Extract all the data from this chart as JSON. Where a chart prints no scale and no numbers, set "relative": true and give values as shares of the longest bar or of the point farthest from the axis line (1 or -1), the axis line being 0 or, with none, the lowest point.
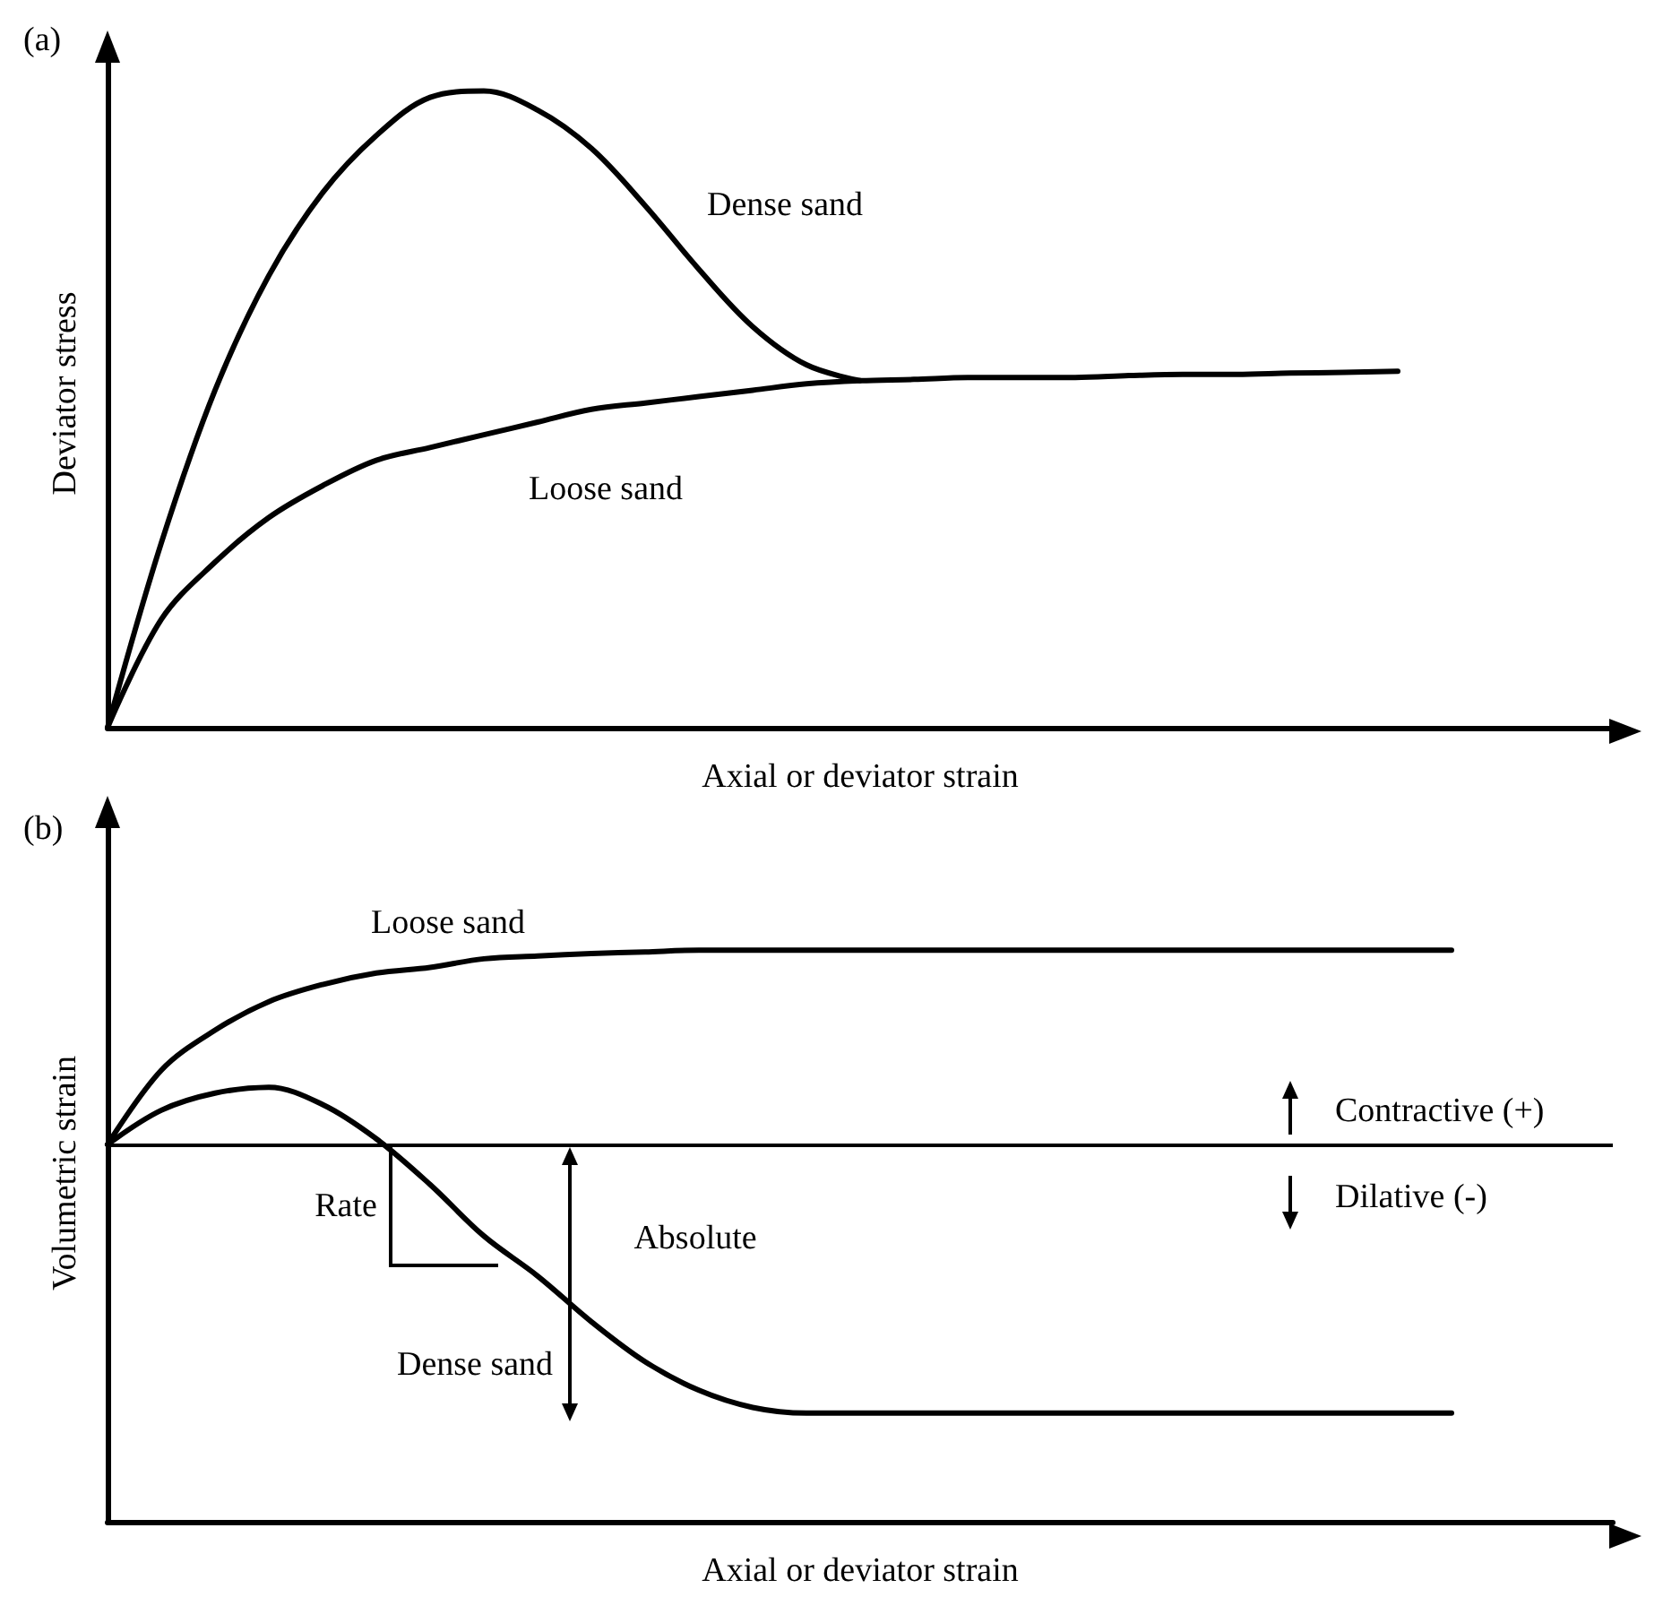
{
  "chart_data": [
    {
      "type": "line",
      "title": "(a)",
      "xlabel": "Axial or deviator strain",
      "ylabel": "Deviator stress",
      "relative": true,
      "grid": false,
      "legend": false,
      "marker": "none",
      "line_style": "solid",
      "categories": [
        null,
        null,
        null,
        null,
        null,
        null,
        null,
        null,
        null,
        null,
        null,
        null,
        null,
        null,
        null,
        null,
        null,
        null,
        null,
        null,
        null,
        null,
        null,
        null,
        null,
        null,
        null,
        null,
        null
      ],
      "series": [
        {
          "name": "Dense sand",
          "color": "#000000",
          "values": [
            0,
            0.29,
            0.53,
            0.71,
            0.84,
            0.93,
            0.99,
            1,
            0.97,
            0.91,
            0.82,
            0.72,
            0.63,
            0.57,
            0.545,
            null,
            null,
            null,
            null,
            null,
            null,
            null,
            null,
            null,
            null,
            null,
            null,
            null,
            null
          ]
        },
        {
          "name": "Loose sand",
          "color": "#000000",
          "values": [
            0,
            0.17,
            0.26,
            0.33,
            0.38,
            0.42,
            0.44,
            0.46,
            0.48,
            0.5,
            0.51,
            0.52,
            0.53,
            0.54,
            0.545,
            0.547,
            0.55,
            0.55,
            0.55,
            0.553,
            0.555,
            0.555,
            0.557,
            0.558,
            0.56,
            null,
            null,
            null,
            null
          ]
        }
      ]
    },
    {
      "type": "line",
      "title": "(b)",
      "xlabel": "Axial or deviator strain",
      "ylabel": "Volumetric strain",
      "relative": true,
      "grid": false,
      "legend": false,
      "marker": "none",
      "line_style": "solid",
      "categories": [
        null,
        null,
        null,
        null,
        null,
        null,
        null,
        null,
        null,
        null,
        null,
        null,
        null,
        null,
        null,
        null,
        null,
        null,
        null,
        null,
        null,
        null,
        null,
        null,
        null,
        null,
        null,
        null,
        null
      ],
      "series": [
        {
          "name": "Loose sand",
          "color": "#000000",
          "values": [
            0.66,
            0.79,
            0.86,
            0.91,
            0.94,
            0.96,
            0.97,
            0.985,
            0.99,
            0.994,
            0.997,
            1,
            1,
            1,
            1,
            1,
            1,
            1,
            1,
            1,
            1,
            1,
            1,
            1,
            1,
            1,
            null,
            null,
            null
          ]
        },
        {
          "name": "Dense sand",
          "color": "#000000",
          "values": [
            0.66,
            0.72,
            0.75,
            0.76,
            0.73,
            0.67,
            0.59,
            0.5,
            0.43,
            0.35,
            0.28,
            0.23,
            0.2,
            0.19,
            0.19,
            0.19,
            0.19,
            0.19,
            0.19,
            0.19,
            0.19,
            0.19,
            0.19,
            0.19,
            0.19,
            0.19,
            null,
            null,
            null
          ]
        }
      ],
      "ref_lines": [
        {
          "axis": "y",
          "value": 0.66,
          "color": "#000000"
        }
      ],
      "annotations": [
        "Rate",
        "Absolute",
        "Contractive (+)",
        "Dilative (-)"
      ]
    }
  ]
}
